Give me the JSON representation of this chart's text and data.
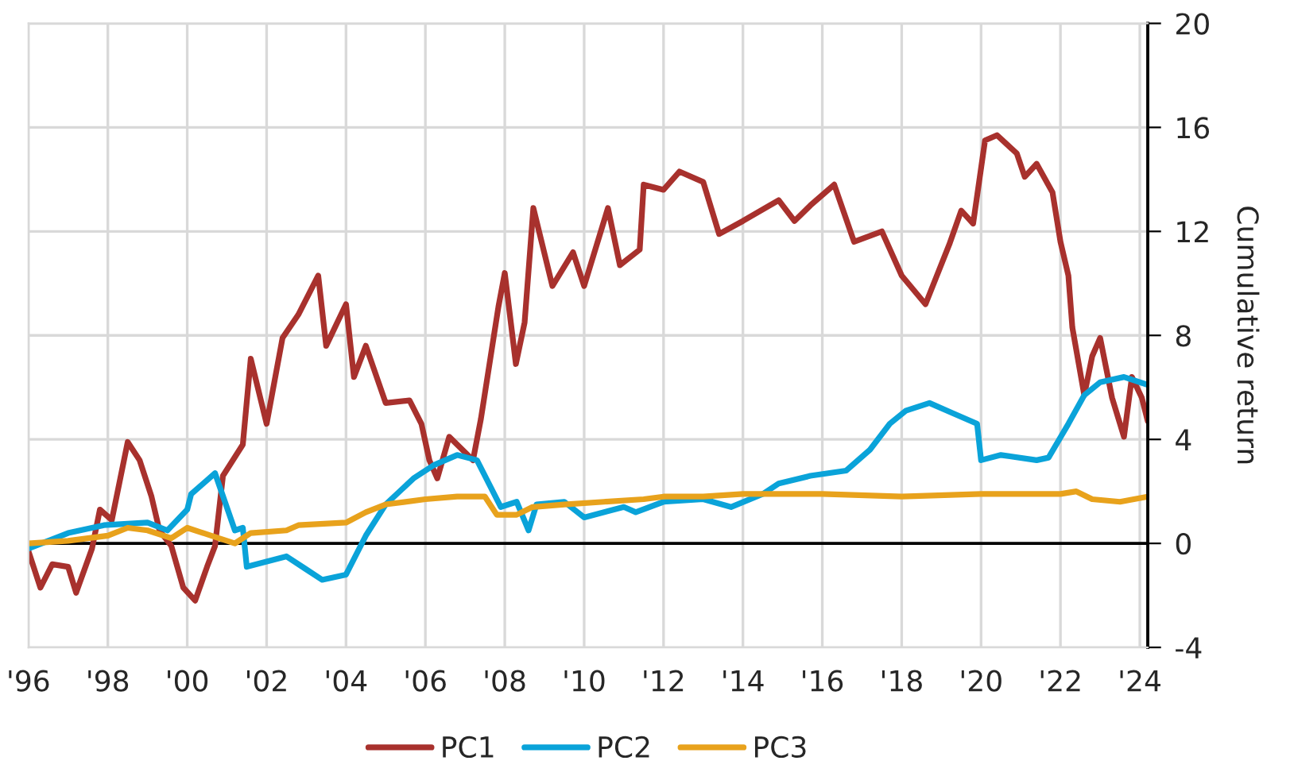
{
  "chart_data": {
    "type": "line",
    "ylabel": "Cumulative return",
    "xlim": [
      1996,
      2024.2
    ],
    "ylim": [
      -4,
      20
    ],
    "xticks": [
      {
        "value": 1996,
        "label": "'96"
      },
      {
        "value": 1998,
        "label": "'98"
      },
      {
        "value": 2000,
        "label": "'00"
      },
      {
        "value": 2002,
        "label": "'02"
      },
      {
        "value": 2004,
        "label": "'04"
      },
      {
        "value": 2006,
        "label": "'06"
      },
      {
        "value": 2008,
        "label": "'08"
      },
      {
        "value": 2010,
        "label": "'10"
      },
      {
        "value": 2012,
        "label": "'12"
      },
      {
        "value": 2014,
        "label": "'14"
      },
      {
        "value": 2016,
        "label": "'16"
      },
      {
        "value": 2018,
        "label": "'18"
      },
      {
        "value": 2020,
        "label": "'20"
      },
      {
        "value": 2022,
        "label": "'22"
      },
      {
        "value": 2024,
        "label": "'24"
      }
    ],
    "yticks": [
      -4,
      0,
      4,
      8,
      12,
      16,
      20
    ],
    "grid": true,
    "legend": "bottom",
    "marker": "none",
    "line_style": "solid",
    "ref_lines": [
      {
        "axis": "y",
        "value": 0,
        "color": "#000000"
      }
    ],
    "series": [
      {
        "name": "PC1",
        "color": "#a8312d",
        "x": [
          1996.0,
          1996.3,
          1996.6,
          1997.0,
          1997.2,
          1997.6,
          1997.8,
          1998.1,
          1998.5,
          1998.8,
          1999.1,
          1999.3,
          1999.6,
          1999.9,
          2000.2,
          2000.5,
          2000.7,
          2000.9,
          2001.4,
          2001.6,
          2002.0,
          2002.4,
          2002.8,
          2003.3,
          2003.5,
          2004.0,
          2004.2,
          2004.5,
          2005.0,
          2005.6,
          2005.9,
          2006.1,
          2006.3,
          2006.6,
          2007.2,
          2007.4,
          2007.84,
          2008.0,
          2008.28,
          2008.5,
          2008.72,
          2009.2,
          2009.72,
          2010.0,
          2010.6,
          2010.9,
          2011.4,
          2011.5,
          2012.0,
          2012.4,
          2013.0,
          2013.4,
          2014.0,
          2014.9,
          2015.3,
          2015.7,
          2016.3,
          2016.8,
          2017.5,
          2018.0,
          2018.6,
          2019.2,
          2019.5,
          2019.8,
          2020.1,
          2020.4,
          2020.9,
          2021.1,
          2021.4,
          2021.8,
          2022.0,
          2022.2,
          2022.3,
          2022.6,
          2022.8,
          2023.0,
          2023.3,
          2023.6,
          2023.8,
          2024.05,
          2024.2
        ],
        "values": [
          -0.3,
          -1.7,
          -0.8,
          -0.9,
          -1.9,
          -0.2,
          1.3,
          0.9,
          3.9,
          3.2,
          1.8,
          0.5,
          -0.1,
          -1.7,
          -2.2,
          -0.9,
          -0.1,
          2.6,
          3.8,
          7.1,
          4.6,
          7.9,
          8.8,
          10.3,
          7.6,
          9.2,
          6.4,
          7.6,
          5.4,
          5.5,
          4.6,
          3.2,
          2.5,
          4.1,
          3.2,
          4.8,
          9.1,
          10.4,
          6.9,
          8.5,
          12.9,
          9.9,
          11.2,
          9.9,
          12.9,
          10.7,
          11.3,
          13.8,
          13.6,
          14.3,
          13.9,
          11.9,
          12.4,
          13.2,
          12.4,
          13.0,
          13.8,
          11.6,
          12.0,
          10.3,
          9.2,
          11.5,
          12.8,
          12.3,
          15.5,
          15.7,
          15.0,
          14.1,
          14.6,
          13.5,
          11.6,
          10.3,
          8.3,
          5.7,
          7.2,
          7.9,
          5.6,
          4.1,
          6.4,
          5.6,
          4.7
        ]
      },
      {
        "name": "PC2",
        "color": "#0aa3d9",
        "x": [
          1996.0,
          1997.0,
          1997.9,
          1999.0,
          1999.5,
          2000.0,
          2000.1,
          2000.7,
          2001.2,
          2001.4,
          2001.5,
          2002.0,
          2002.5,
          2003.0,
          2003.4,
          2004.0,
          2004.5,
          2005.0,
          2005.7,
          2006.2,
          2006.8,
          2007.3,
          2007.6,
          2007.9,
          2008.3,
          2008.6,
          2008.8,
          2009.5,
          2010.0,
          2011.0,
          2011.3,
          2012.0,
          2013.0,
          2013.7,
          2014.5,
          2014.9,
          2015.7,
          2016.6,
          2017.2,
          2017.7,
          2018.1,
          2018.7,
          2019.3,
          2019.9,
          2020.0,
          2020.5,
          2021.4,
          2021.7,
          2022.2,
          2022.6,
          2023.0,
          2023.6,
          2024.2
        ],
        "values": [
          -0.2,
          0.4,
          0.7,
          0.8,
          0.5,
          1.3,
          1.9,
          2.7,
          0.5,
          0.6,
          -0.9,
          -0.7,
          -0.5,
          -1.0,
          -1.4,
          -1.2,
          0.3,
          1.5,
          2.5,
          3.0,
          3.4,
          3.2,
          2.3,
          1.4,
          1.6,
          0.5,
          1.5,
          1.6,
          1.0,
          1.4,
          1.2,
          1.6,
          1.7,
          1.4,
          1.9,
          2.3,
          2.6,
          2.8,
          3.6,
          4.6,
          5.1,
          5.4,
          5.0,
          4.6,
          3.2,
          3.4,
          3.2,
          3.3,
          4.6,
          5.7,
          6.2,
          6.4,
          6.1
        ]
      },
      {
        "name": "PC3",
        "color": "#e8a21c",
        "x": [
          1996.0,
          1997.0,
          1998.0,
          1998.5,
          1999.0,
          1999.6,
          2000.0,
          2000.8,
          2001.2,
          2001.6,
          2002.5,
          2002.8,
          2004.0,
          2004.5,
          2005.0,
          2006.0,
          2006.8,
          2007.5,
          2007.8,
          2008.3,
          2008.7,
          2009.5,
          2010.5,
          2011.5,
          2012.0,
          2013.0,
          2014.0,
          2016.0,
          2018.0,
          2020.0,
          2022.0,
          2022.4,
          2022.8,
          2023.5,
          2024.2
        ],
        "values": [
          0.0,
          0.1,
          0.3,
          0.6,
          0.5,
          0.2,
          0.6,
          0.2,
          0.0,
          0.4,
          0.5,
          0.7,
          0.8,
          1.2,
          1.5,
          1.7,
          1.8,
          1.8,
          1.1,
          1.1,
          1.4,
          1.5,
          1.6,
          1.7,
          1.8,
          1.8,
          1.9,
          1.9,
          1.8,
          1.9,
          1.9,
          2.0,
          1.7,
          1.6,
          1.8
        ]
      }
    ]
  }
}
